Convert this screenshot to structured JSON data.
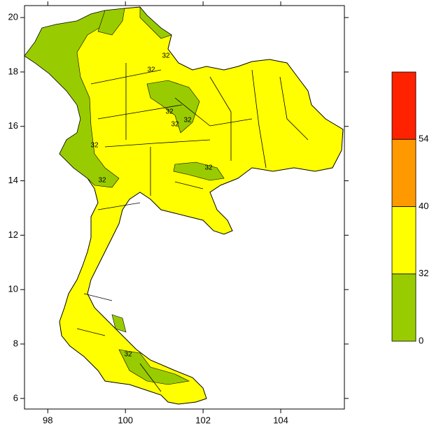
{
  "chart_data": {
    "type": "contour_map",
    "xlim": [
      97.4,
      105.64
    ],
    "xticks": [
      98,
      100,
      102,
      104
    ],
    "ylim": [
      5.61,
      20.44
    ],
    "yticks": [
      6,
      8,
      10,
      12,
      14,
      16,
      18,
      20
    ],
    "levels": [
      0,
      32,
      40,
      54
    ],
    "colors": [
      "#99cc00",
      "#ffff00",
      "#ff9900",
      "#ff2200"
    ]
  }
}
